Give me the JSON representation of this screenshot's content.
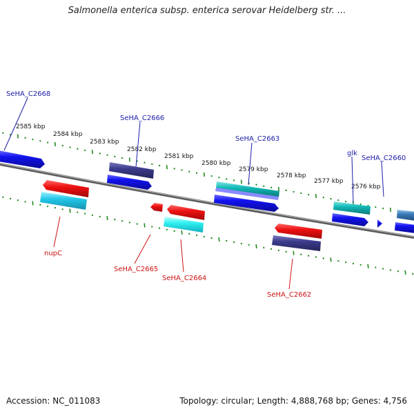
{
  "title": "Salmonella enterica subsp. enterica serovar Heidelberg str. ...",
  "footer": {
    "accession": "Accession: NC_011083",
    "stats": "Topology: circular; Length: 4,888,768 bp; Genes: 4,756"
  },
  "colors": {
    "forward_label": "#1a1aa8",
    "reverse_label": "#cc1111",
    "backbone": "#777777",
    "tick": "#1f8a1f",
    "blue": "#1010e0",
    "navy": "#3b3b8c",
    "red": "#e01010",
    "cyan": "#20c8e0",
    "teal": "#10b8b8",
    "steelblue": "#3a7ab8"
  },
  "kbp_labels": [
    "2585 kbp",
    "2584 kbp",
    "2583 kbp",
    "2582 kbp",
    "2581 kbp",
    "2580 kbp",
    "2579 kbp",
    "2578 kbp",
    "2577 kbp",
    "2576 kbp"
  ],
  "gene_labels": [
    {
      "name": "SeHA_C2668",
      "strand": "forward"
    },
    {
      "name": "SeHA_C2666",
      "strand": "forward"
    },
    {
      "name": "SeHA_C2663",
      "strand": "forward"
    },
    {
      "name": "glk",
      "strand": "forward"
    },
    {
      "name": "SeHA_C2660",
      "strand": "forward"
    },
    {
      "name": "nupC",
      "strand": "reverse"
    },
    {
      "name": "SeHA_C2665",
      "strand": "reverse"
    },
    {
      "name": "SeHA_C2664",
      "strand": "reverse"
    },
    {
      "name": "SeHA_C2662",
      "strand": "reverse"
    }
  ]
}
